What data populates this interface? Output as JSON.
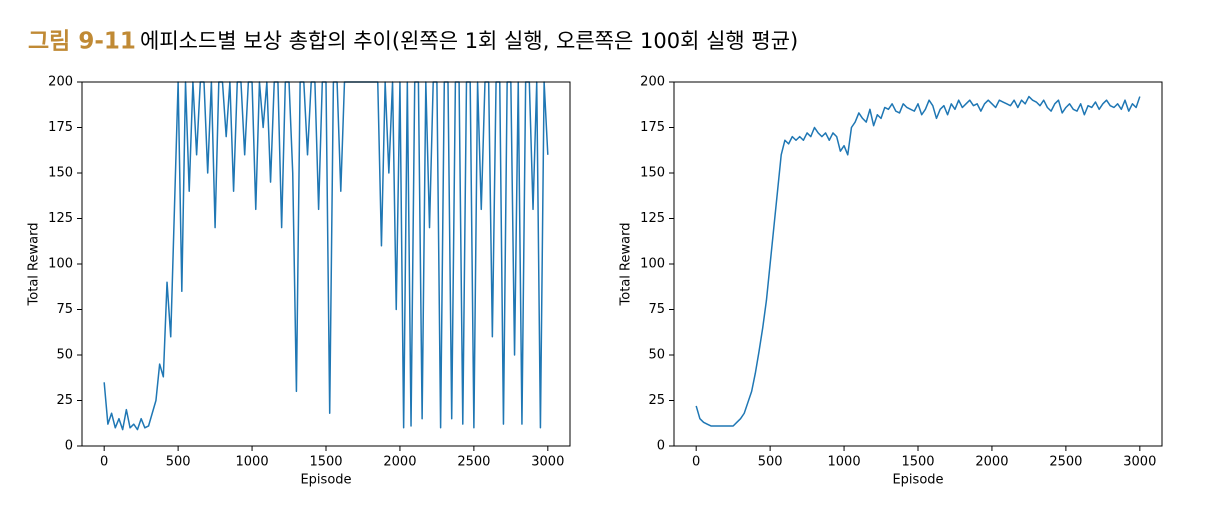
{
  "figure_label": "그림 9-11",
  "caption": "에피소드별 보상 총합의 추이(왼쪽은 1회 실행, 오른쪽은 100회 실행 평균)",
  "chart_data": [
    {
      "type": "line",
      "xlabel": "Episode",
      "ylabel": "Total Reward",
      "color": "#1f77b4",
      "xlim": [
        -150,
        3150
      ],
      "ylim": [
        0,
        200
      ],
      "xticks": [
        0,
        500,
        1000,
        1500,
        2000,
        2500,
        3000
      ],
      "yticks": [
        0,
        25,
        50,
        75,
        100,
        125,
        150,
        175,
        200
      ],
      "x": [
        0,
        25,
        50,
        75,
        100,
        125,
        150,
        175,
        200,
        225,
        250,
        275,
        300,
        325,
        350,
        375,
        400,
        425,
        450,
        475,
        500,
        525,
        550,
        575,
        600,
        625,
        650,
        675,
        700,
        725,
        750,
        775,
        800,
        825,
        850,
        875,
        900,
        925,
        950,
        975,
        1000,
        1025,
        1050,
        1075,
        1100,
        1125,
        1150,
        1175,
        1200,
        1225,
        1250,
        1275,
        1300,
        1325,
        1350,
        1375,
        1400,
        1425,
        1450,
        1475,
        1500,
        1525,
        1550,
        1575,
        1600,
        1625,
        1650,
        1675,
        1700,
        1725,
        1750,
        1775,
        1800,
        1825,
        1850,
        1875,
        1900,
        1925,
        1950,
        1975,
        2000,
        2025,
        2050,
        2075,
        2100,
        2125,
        2150,
        2175,
        2200,
        2225,
        2250,
        2275,
        2300,
        2325,
        2350,
        2375,
        2400,
        2425,
        2450,
        2475,
        2500,
        2525,
        2550,
        2575,
        2600,
        2625,
        2650,
        2675,
        2700,
        2725,
        2750,
        2775,
        2800,
        2825,
        2850,
        2875,
        2900,
        2925,
        2950,
        2975,
        3000
      ],
      "values": [
        35,
        12,
        18,
        10,
        15,
        9,
        20,
        10,
        12,
        9,
        15,
        10,
        11,
        18,
        25,
        45,
        38,
        90,
        60,
        130,
        200,
        85,
        200,
        140,
        200,
        160,
        200,
        200,
        150,
        200,
        120,
        200,
        200,
        170,
        200,
        140,
        200,
        200,
        160,
        200,
        200,
        130,
        200,
        175,
        200,
        145,
        200,
        200,
        120,
        200,
        200,
        150,
        30,
        200,
        200,
        160,
        200,
        200,
        130,
        200,
        200,
        18,
        200,
        200,
        140,
        200,
        200,
        200,
        200,
        200,
        200,
        200,
        200,
        200,
        200,
        110,
        200,
        150,
        200,
        75,
        200,
        10,
        200,
        11,
        200,
        200,
        15,
        200,
        120,
        200,
        200,
        10,
        200,
        200,
        15,
        200,
        200,
        12,
        200,
        200,
        10,
        200,
        130,
        200,
        200,
        60,
        200,
        200,
        12,
        200,
        200,
        50,
        200,
        12,
        200,
        200,
        130,
        200,
        10,
        200,
        160
      ]
    },
    {
      "type": "line",
      "xlabel": "Episode",
      "ylabel": "Total Reward",
      "color": "#1f77b4",
      "xlim": [
        -150,
        3150
      ],
      "ylim": [
        0,
        200
      ],
      "xticks": [
        0,
        500,
        1000,
        1500,
        2000,
        2500,
        3000
      ],
      "yticks": [
        0,
        25,
        50,
        75,
        100,
        125,
        150,
        175,
        200
      ],
      "x": [
        0,
        25,
        50,
        75,
        100,
        125,
        150,
        175,
        200,
        225,
        250,
        275,
        300,
        325,
        350,
        375,
        400,
        425,
        450,
        475,
        500,
        525,
        550,
        575,
        600,
        625,
        650,
        675,
        700,
        725,
        750,
        775,
        800,
        825,
        850,
        875,
        900,
        925,
        950,
        975,
        1000,
        1025,
        1050,
        1075,
        1100,
        1125,
        1150,
        1175,
        1200,
        1225,
        1250,
        1275,
        1300,
        1325,
        1350,
        1375,
        1400,
        1425,
        1450,
        1475,
        1500,
        1525,
        1550,
        1575,
        1600,
        1625,
        1650,
        1675,
        1700,
        1725,
        1750,
        1775,
        1800,
        1825,
        1850,
        1875,
        1900,
        1925,
        1950,
        1975,
        2000,
        2025,
        2050,
        2075,
        2100,
        2125,
        2150,
        2175,
        2200,
        2225,
        2250,
        2275,
        2300,
        2325,
        2350,
        2375,
        2400,
        2425,
        2450,
        2475,
        2500,
        2525,
        2550,
        2575,
        2600,
        2625,
        2650,
        2675,
        2700,
        2725,
        2750,
        2775,
        2800,
        2825,
        2850,
        2875,
        2900,
        2925,
        2950,
        2975,
        3000
      ],
      "values": [
        22,
        15,
        13,
        12,
        11,
        11,
        11,
        11,
        11,
        11,
        11,
        13,
        15,
        18,
        24,
        30,
        40,
        52,
        65,
        80,
        100,
        120,
        140,
        160,
        168,
        166,
        170,
        168,
        170,
        168,
        172,
        170,
        175,
        172,
        170,
        172,
        168,
        172,
        170,
        162,
        165,
        160,
        175,
        178,
        183,
        180,
        178,
        185,
        176,
        182,
        180,
        186,
        185,
        188,
        184,
        183,
        188,
        186,
        185,
        184,
        188,
        182,
        185,
        190,
        187,
        180,
        185,
        187,
        182,
        188,
        185,
        190,
        186,
        188,
        190,
        187,
        188,
        184,
        188,
        190,
        188,
        186,
        190,
        189,
        188,
        187,
        190,
        186,
        190,
        188,
        192,
        190,
        189,
        187,
        190,
        186,
        184,
        188,
        190,
        183,
        186,
        188,
        185,
        184,
        188,
        182,
        187,
        186,
        189,
        185,
        188,
        190,
        187,
        186,
        188,
        185,
        190,
        184,
        188,
        186,
        192
      ]
    }
  ]
}
